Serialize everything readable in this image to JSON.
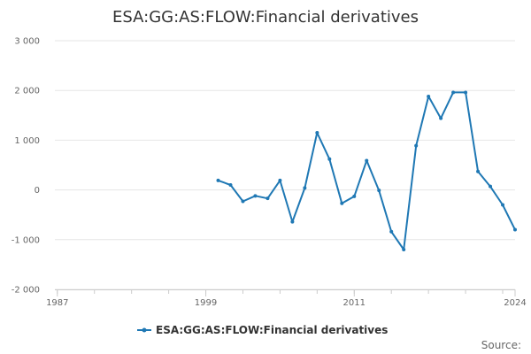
{
  "chart_data": {
    "type": "line",
    "title": "ESA:GG:AS:FLOW:Financial derivatives",
    "xlabel": "",
    "ylabel": "",
    "x_ticks": [
      "1987",
      "1999",
      "2011",
      "2024"
    ],
    "xlim": [
      1986.8,
      2024
    ],
    "y_ticks": [
      "3 000",
      "2 000",
      "1 000",
      "0",
      "-1 000",
      "-2 000"
    ],
    "ylim": [
      -2000,
      3000
    ],
    "grid": true,
    "legend_position": "bottom",
    "series": [
      {
        "name": "ESA:GG:AS:FLOW:Financial derivatives",
        "color": "#1f78b4",
        "x": [
          2000,
          2001,
          2002,
          2003,
          2004,
          2005,
          2006,
          2007,
          2008,
          2009,
          2010,
          2011,
          2012,
          2013,
          2014,
          2015,
          2016,
          2017,
          2018,
          2019,
          2020,
          2021,
          2022,
          2023,
          2024
        ],
        "y": [
          190,
          100,
          -230,
          -120,
          -170,
          190,
          -640,
          40,
          1150,
          620,
          -270,
          -130,
          590,
          -10,
          -840,
          -1200,
          890,
          1880,
          1440,
          1960,
          1960,
          370,
          70,
          -300,
          -800
        ]
      }
    ]
  },
  "footer": {
    "source_label": "Source:"
  }
}
